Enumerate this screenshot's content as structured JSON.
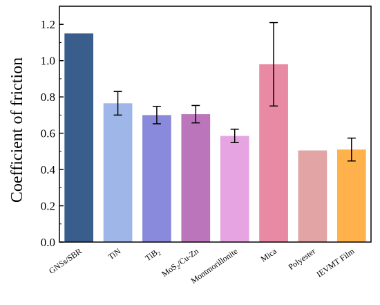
{
  "chart_data": {
    "type": "bar",
    "title": "",
    "xlabel": "",
    "ylabel": "Coefficient of friction",
    "ylim": [
      0,
      1.3
    ],
    "yticks": [
      "0.0",
      "0.2",
      "0.4",
      "0.6",
      "0.8",
      "1.0",
      "1.2"
    ],
    "grid": false,
    "legend": "none",
    "categories": [
      {
        "main": "GNSs/SBR",
        "sub": "",
        "rest": ""
      },
      {
        "main": "TiN",
        "sub": "",
        "rest": ""
      },
      {
        "main": "TiB",
        "sub": "2",
        "rest": ""
      },
      {
        "main": "MoS",
        "sub": "2",
        "rest": "/Cu-Zn"
      },
      {
        "main": "Montmorillonite",
        "sub": "",
        "rest": ""
      },
      {
        "main": "Mica",
        "sub": "",
        "rest": ""
      },
      {
        "main": "Polyester",
        "sub": "",
        "rest": ""
      },
      {
        "main": "IEVMT Film",
        "sub": "",
        "rest": ""
      }
    ],
    "values": [
      1.15,
      0.765,
      0.7,
      0.705,
      0.585,
      0.98,
      0.505,
      0.51
    ],
    "errors": [
      null,
      0.065,
      0.048,
      0.048,
      0.037,
      0.23,
      null,
      0.063
    ],
    "colors": [
      "#3a5e8c",
      "#9fb6e8",
      "#8a8adc",
      "#bb76bb",
      "#e6a4e2",
      "#e98aa4",
      "#e2a4a4",
      "#ffb24c"
    ]
  }
}
